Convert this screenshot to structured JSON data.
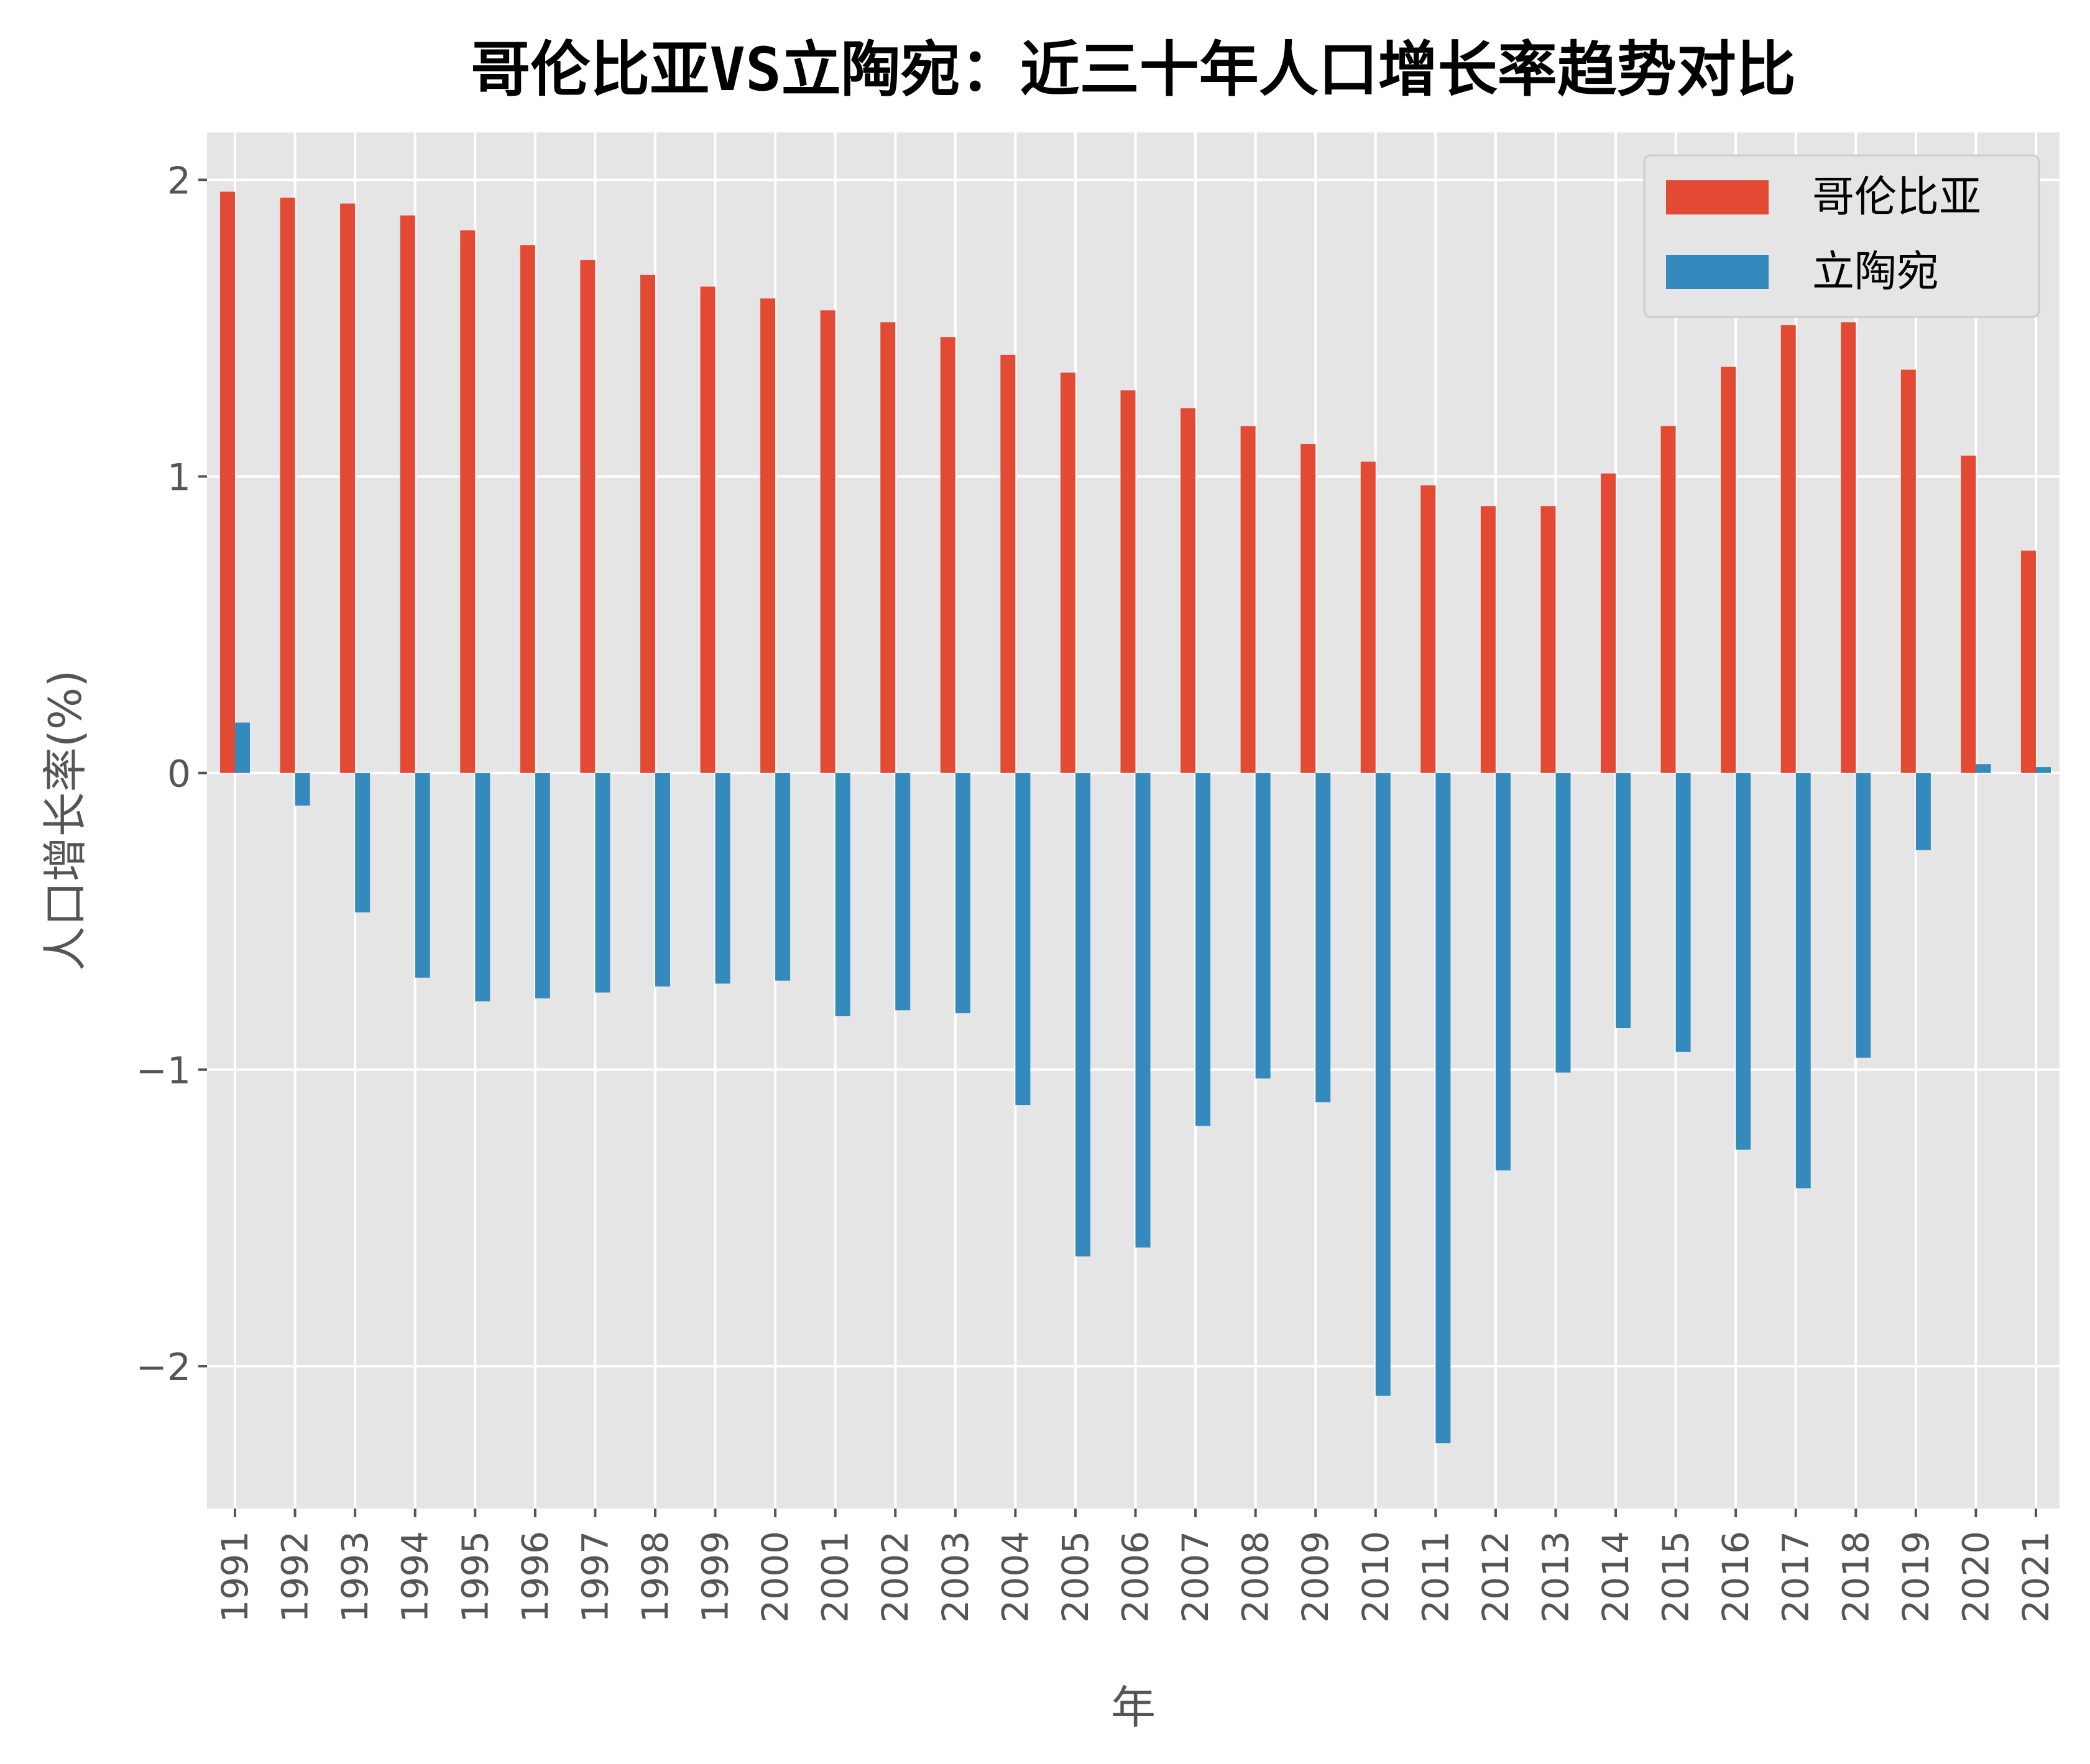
{
  "chart_data": {
    "type": "bar",
    "title": "哥伦比亚VS立陶宛：近三十年人口增长率趋势对比",
    "xlabel": "年",
    "ylabel": "人口增长率(%)",
    "ylim": [
      -2.48,
      2.16
    ],
    "yticks": [
      -2,
      -1,
      0,
      1,
      2
    ],
    "ytick_labels": [
      "−2",
      "−1",
      "0",
      "1",
      "2"
    ],
    "grid": true,
    "legend_position": "upper right",
    "categories": [
      "1991",
      "1992",
      "1993",
      "1994",
      "1995",
      "1996",
      "1997",
      "1998",
      "1999",
      "2000",
      "2001",
      "2002",
      "2003",
      "2004",
      "2005",
      "2006",
      "2007",
      "2008",
      "2009",
      "2010",
      "2011",
      "2012",
      "2013",
      "2014",
      "2015",
      "2016",
      "2017",
      "2018",
      "2019",
      "2020",
      "2021"
    ],
    "series": [
      {
        "name": "哥伦比亚",
        "color": "#E24A33",
        "values": [
          1.96,
          1.94,
          1.92,
          1.88,
          1.83,
          1.78,
          1.73,
          1.68,
          1.64,
          1.6,
          1.56,
          1.52,
          1.47,
          1.41,
          1.35,
          1.29,
          1.23,
          1.17,
          1.11,
          1.05,
          0.97,
          0.9,
          0.9,
          1.01,
          1.17,
          1.37,
          1.51,
          1.52,
          1.36,
          1.07,
          0.75
        ]
      },
      {
        "name": "立陶宛",
        "color": "#348ABD",
        "values": [
          0.17,
          -0.11,
          -0.47,
          -0.69,
          -0.77,
          -0.76,
          -0.74,
          -0.72,
          -0.71,
          -0.7,
          -0.82,
          -0.8,
          -0.81,
          -1.12,
          -1.63,
          -1.6,
          -1.19,
          -1.03,
          -1.11,
          -2.1,
          -2.26,
          -1.34,
          -1.01,
          -0.86,
          -0.94,
          -1.27,
          -1.4,
          -0.96,
          -0.26,
          0.03,
          0.02
        ]
      }
    ]
  }
}
